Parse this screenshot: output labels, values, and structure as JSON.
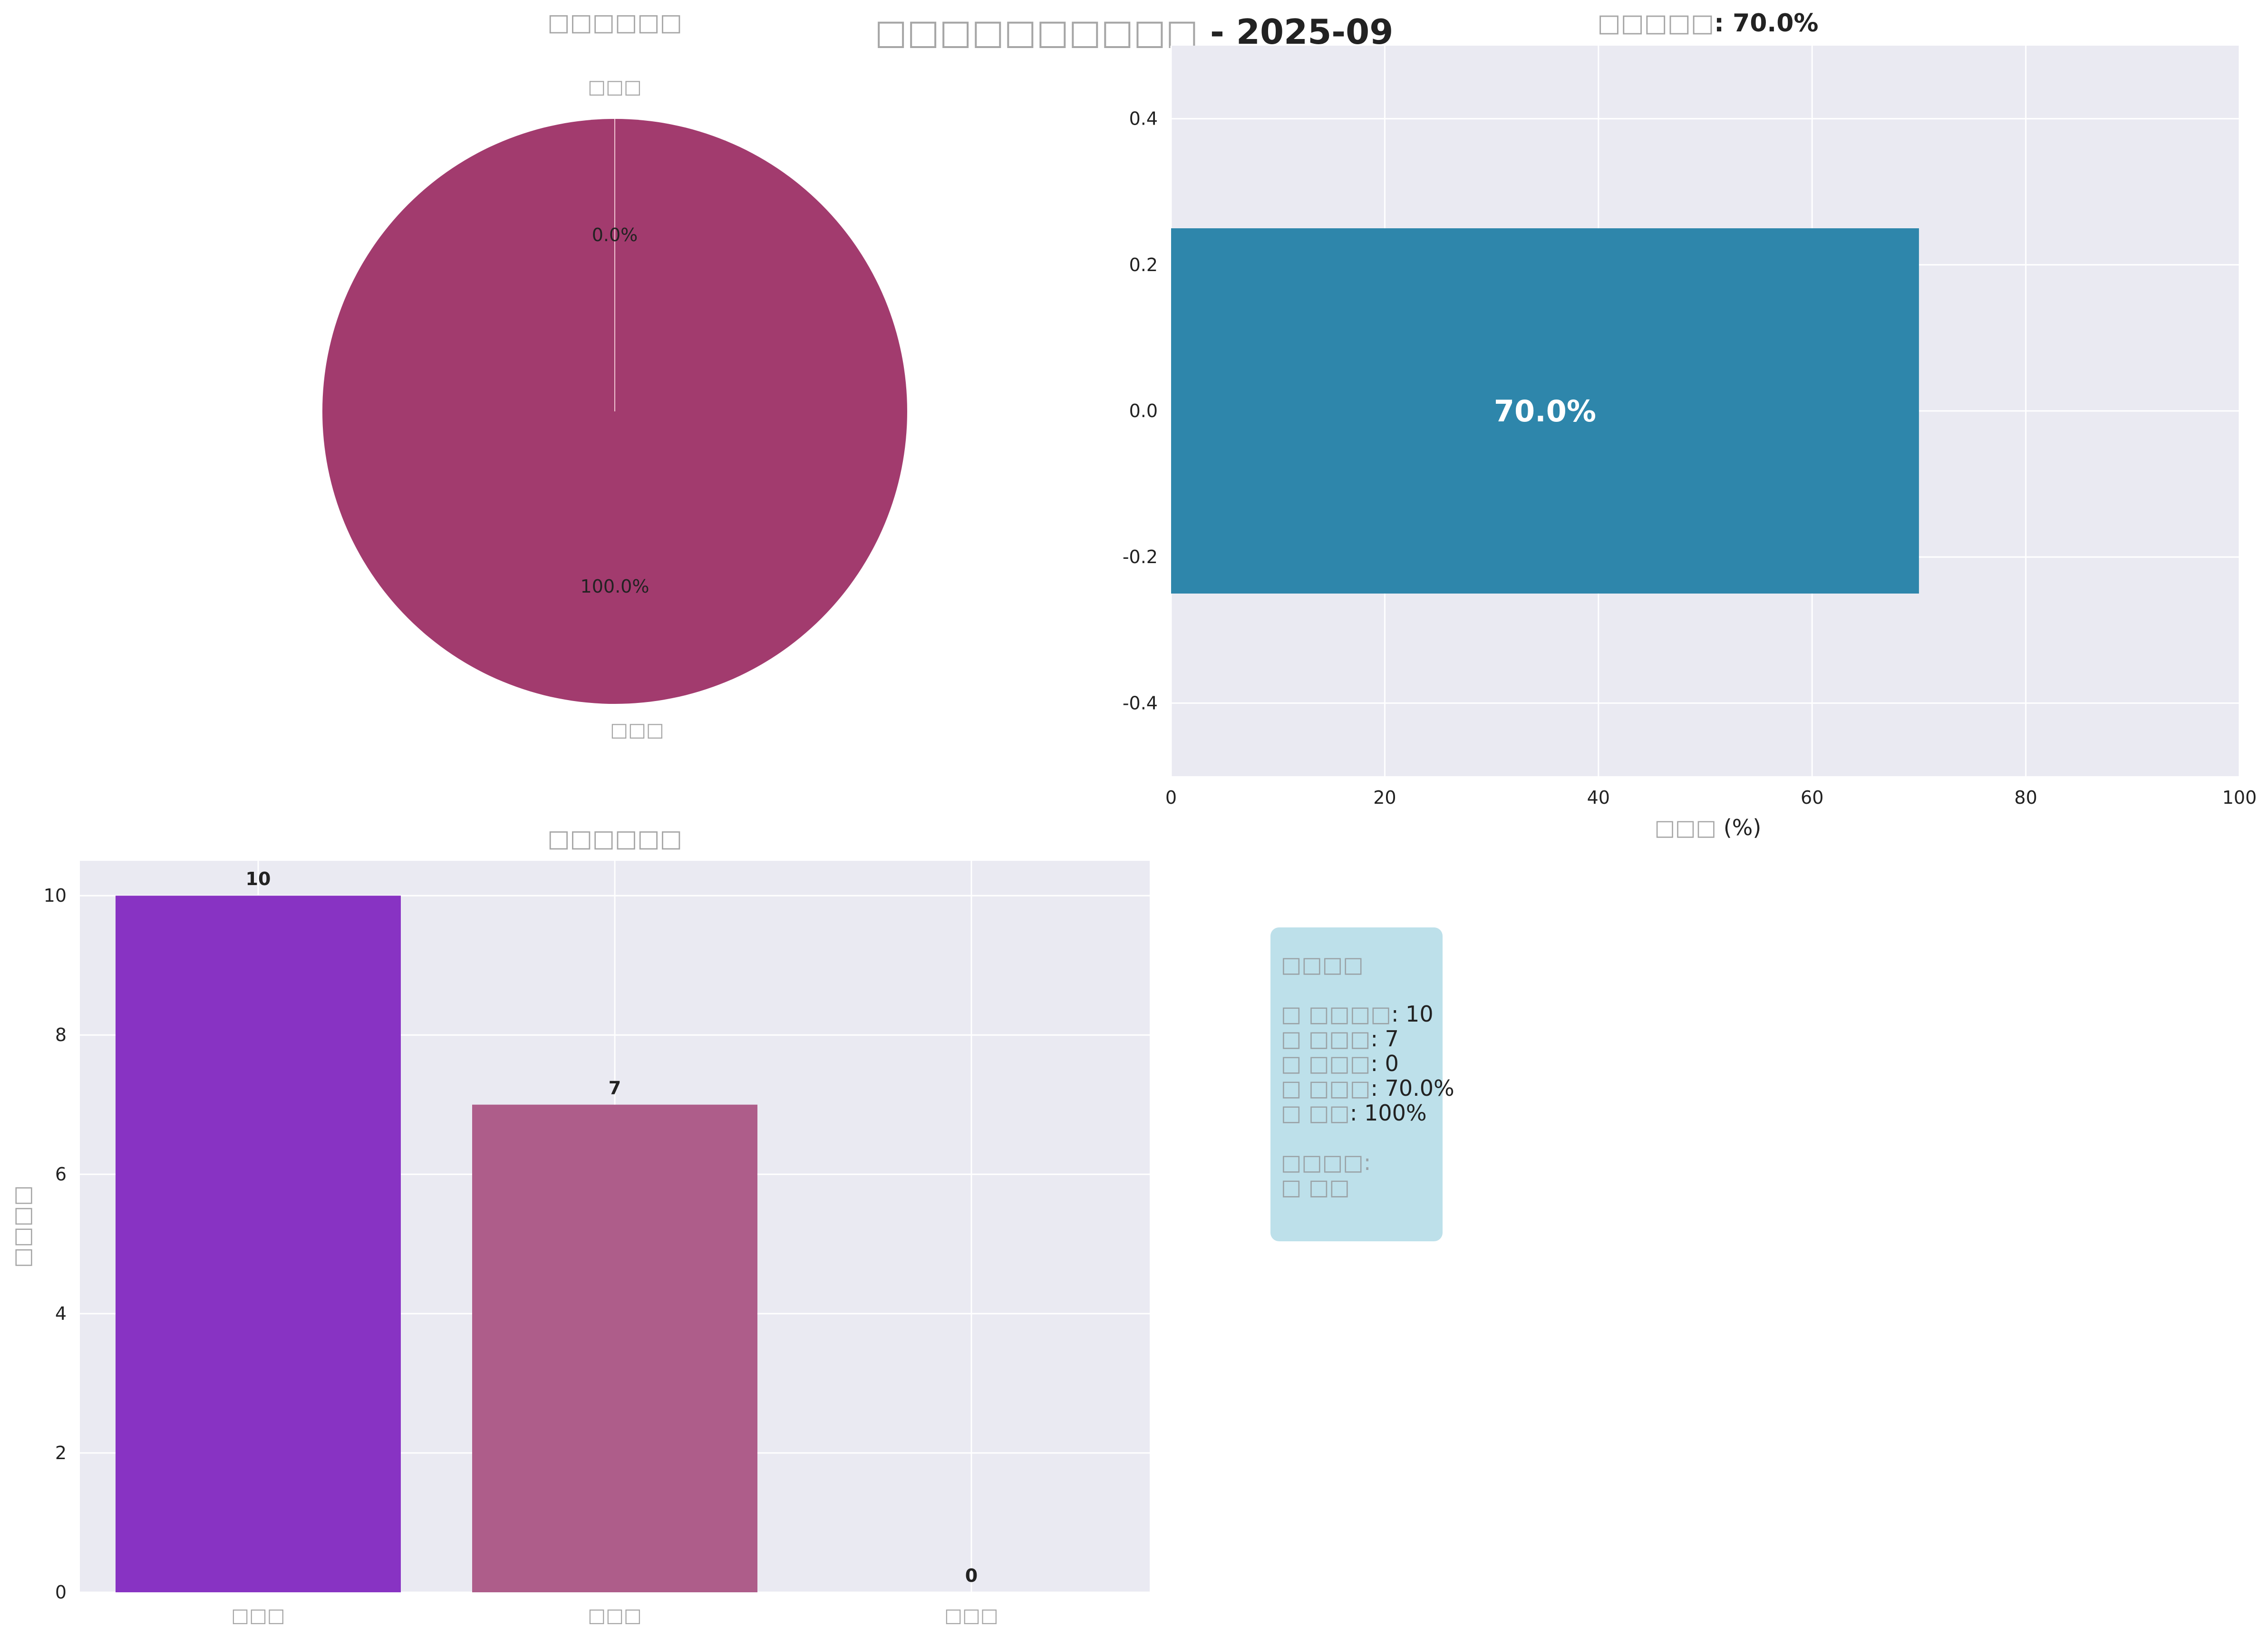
{
  "suptitle": {
    "prefix": "□□□□□□□□□□",
    "suffix": " - 2025-09"
  },
  "charts": {
    "pie": {
      "title": "□□□□□□",
      "labels": [
        "□□□",
        "□□□"
      ],
      "pct_labels": [
        "0.0%",
        "100.0%"
      ]
    },
    "hbar": {
      "title_prefix": "□□□□□",
      "title_suffix": ": 70.0%",
      "xlabel_prefix": "□□□",
      "xlabel_suffix": " (%)",
      "bar_label": "70.0%"
    },
    "vbar": {
      "title": "□□□□□□",
      "ylabel": "□□□□"
    }
  },
  "chart_data": [
    {
      "type": "pie",
      "values": [
        0,
        100
      ],
      "colors": [
        "#f2c6d4",
        "#a23b6e"
      ]
    },
    {
      "type": "bar",
      "orientation": "horizontal",
      "values": [
        70.0
      ],
      "xlim": [
        0,
        100
      ],
      "ylim": [
        -0.5,
        0.5
      ],
      "xticks": [
        "0",
        "20",
        "40",
        "60",
        "80",
        "100"
      ],
      "yticks": [
        "0.4",
        "0.2",
        "0.0",
        "-0.2",
        "-0.4"
      ],
      "color": "#2e86ab",
      "grid": true
    },
    {
      "type": "bar",
      "categories": [
        "□□□",
        "□□□",
        "□□□"
      ],
      "values": [
        10,
        7,
        0
      ],
      "value_labels": [
        "10",
        "7",
        "0"
      ],
      "ylim": [
        0,
        10.5
      ],
      "yticks": [
        "0",
        "2",
        "4",
        "6",
        "8",
        "10"
      ],
      "colors": [
        "#8833c3",
        "#ae5d8a",
        "#cccccc"
      ],
      "grid": true
    }
  ],
  "stats": {
    "title": "□□□□",
    "lines": [
      {
        "k": "□ □□□□",
        "v": ": 10"
      },
      {
        "k": "□ □□□",
        "v": ": 7"
      },
      {
        "k": "□ □□□",
        "v": ": 0"
      },
      {
        "k": "□ □□□",
        "v": ": 70.0%"
      },
      {
        "k": "□ □□",
        "v": ": 100%"
      }
    ],
    "section": "□□□□:",
    "section_item": "□ □□"
  }
}
